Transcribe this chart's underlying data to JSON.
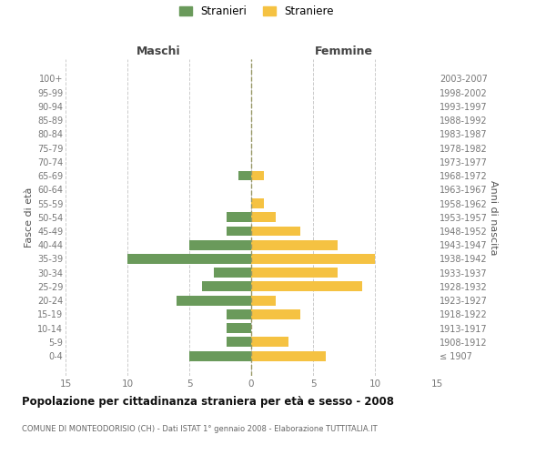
{
  "age_groups": [
    "100+",
    "95-99",
    "90-94",
    "85-89",
    "80-84",
    "75-79",
    "70-74",
    "65-69",
    "60-64",
    "55-59",
    "50-54",
    "45-49",
    "40-44",
    "35-39",
    "30-34",
    "25-29",
    "20-24",
    "15-19",
    "10-14",
    "5-9",
    "0-4"
  ],
  "birth_years": [
    "≤ 1907",
    "1908-1912",
    "1913-1917",
    "1918-1922",
    "1923-1927",
    "1928-1932",
    "1933-1937",
    "1938-1942",
    "1943-1947",
    "1948-1952",
    "1953-1957",
    "1958-1962",
    "1963-1967",
    "1968-1972",
    "1973-1977",
    "1978-1982",
    "1983-1987",
    "1988-1992",
    "1993-1997",
    "1998-2002",
    "2003-2007"
  ],
  "maschi": [
    0,
    0,
    0,
    0,
    0,
    0,
    0,
    1,
    0,
    0,
    2,
    2,
    5,
    10,
    3,
    4,
    6,
    2,
    2,
    2,
    5
  ],
  "femmine": [
    0,
    0,
    0,
    0,
    0,
    0,
    0,
    1,
    0,
    1,
    2,
    4,
    7,
    10,
    7,
    9,
    2,
    4,
    0,
    3,
    6
  ],
  "color_maschi": "#6a9a5b",
  "color_femmine": "#f5c242",
  "title": "Popolazione per cittadinanza straniera per età e sesso - 2008",
  "subtitle": "COMUNE DI MONTEODORISIO (CH) - Dati ISTAT 1° gennaio 2008 - Elaborazione TUTTITALIA.IT",
  "label_maschi": "Maschi",
  "label_femmine": "Femmine",
  "ylabel_left": "Fasce di età",
  "ylabel_right": "Anni di nascita",
  "legend_maschi": "Stranieri",
  "legend_femmine": "Straniere",
  "xlim": 15,
  "bg_color": "#ffffff",
  "grid_color": "#cccccc"
}
